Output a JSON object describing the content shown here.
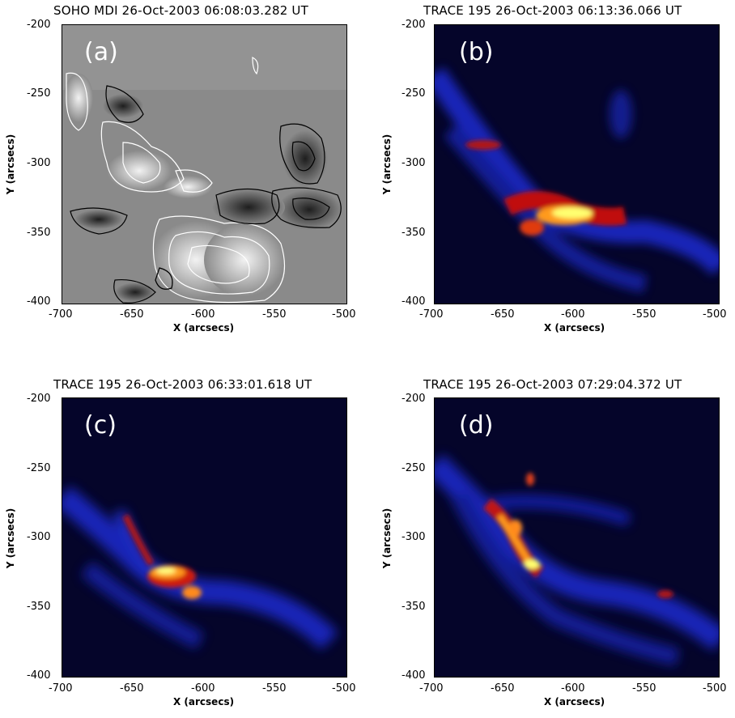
{
  "figure": {
    "panels": [
      {
        "id": "a",
        "letter": "(a)",
        "title": "SOHO MDI 26-Oct-2003 06:08:03.282 UT",
        "kind": "magnetogram"
      },
      {
        "id": "b",
        "letter": "(b)",
        "title": "TRACE 195 26-Oct-2003 06:13:36.066 UT",
        "kind": "euv"
      },
      {
        "id": "c",
        "letter": "(c)",
        "title": "TRACE 195 26-Oct-2003 06:33:01.618 UT",
        "kind": "euv"
      },
      {
        "id": "d",
        "letter": "(d)",
        "title": "TRACE 195 26-Oct-2003 07:29:04.372 UT",
        "kind": "euv"
      }
    ],
    "xlabel": "X (arcsecs)",
    "ylabel": "Y (arcsecs)",
    "xticks": [
      "-700",
      "-650",
      "-600",
      "-550",
      "-500"
    ],
    "yticks": [
      "-200",
      "-250",
      "-300",
      "-350",
      "-400"
    ],
    "colors": {
      "background": "#ffffff",
      "euv_bg": "#05052a",
      "magnetogram_bg": "#8a8a8a"
    }
  }
}
